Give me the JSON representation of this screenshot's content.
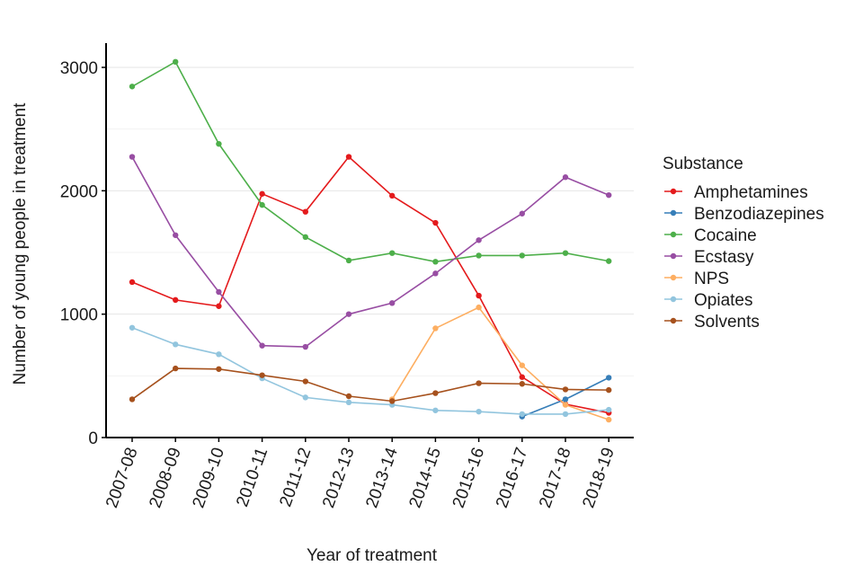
{
  "chart_data": {
    "type": "line",
    "title": "",
    "xlabel": "Year of treatment",
    "ylabel": "Number of young people in treatment",
    "categories": [
      "2007-08",
      "2008-09",
      "2009-10",
      "2010-11",
      "2011-12",
      "2012-13",
      "2013-14",
      "2014-15",
      "2015-16",
      "2016-17",
      "2017-18",
      "2018-19"
    ],
    "ylim": [
      0,
      3200
    ],
    "yticks": [
      0,
      1000,
      2000,
      3000
    ],
    "ytick_labels": [
      "0",
      "1000",
      "2000",
      "3000"
    ],
    "grid": true,
    "legend": {
      "title": "Substance",
      "placement": "right"
    },
    "series": [
      {
        "name": "Amphetamines",
        "color": "#e41a1c",
        "values": [
          1260,
          1115,
          1065,
          1975,
          1830,
          2275,
          1960,
          1740,
          1150,
          490,
          270,
          200
        ]
      },
      {
        "name": "Benzodiazepines",
        "color": "#377eb8",
        "values": [
          null,
          null,
          null,
          null,
          null,
          null,
          null,
          null,
          null,
          170,
          310,
          485
        ]
      },
      {
        "name": "Cocaine",
        "color": "#4daf4a",
        "values": [
          2845,
          3045,
          2380,
          1885,
          1625,
          1435,
          1495,
          1425,
          1475,
          1475,
          1495,
          1430
        ]
      },
      {
        "name": "Ecstasy",
        "color": "#984ea3",
        "values": [
          2275,
          1640,
          1180,
          745,
          735,
          1000,
          1090,
          1330,
          1600,
          1815,
          2110,
          1965
        ]
      },
      {
        "name": "NPS",
        "color": "#fdae61",
        "values": [
          null,
          null,
          null,
          null,
          null,
          null,
          310,
          885,
          1055,
          585,
          265,
          145
        ]
      },
      {
        "name": "Opiates",
        "color": "#92c5de",
        "values": [
          890,
          755,
          675,
          480,
          325,
          285,
          265,
          220,
          210,
          190,
          190,
          225
        ]
      },
      {
        "name": "Solvents",
        "color": "#a6511d",
        "values": [
          310,
          560,
          555,
          505,
          455,
          335,
          295,
          360,
          440,
          435,
          390,
          385
        ]
      }
    ]
  }
}
